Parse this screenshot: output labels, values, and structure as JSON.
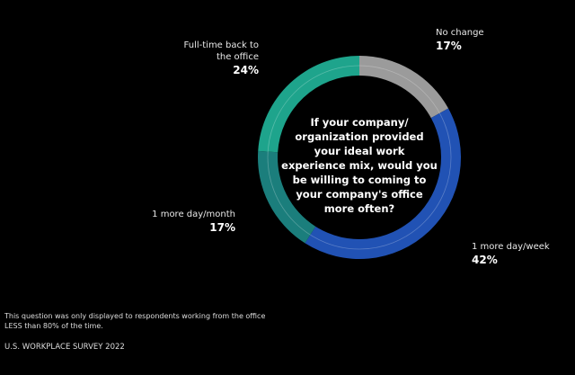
{
  "chart_data": {
    "type": "donut",
    "title": "If your company/ organization provided your ideal work experience mix, would you be willing to coming to your company's office more often?",
    "categories": [
      "No change",
      "1 more day/week",
      "1 more day/month",
      "Full-time back to the office"
    ],
    "values": [
      17,
      42,
      17,
      24
    ],
    "value_labels": [
      "17%",
      "42%",
      "17%",
      "24%"
    ],
    "colors": [
      "#9b9b9b",
      "#2152b4",
      "#1b7e7c",
      "#1ea48c"
    ],
    "footnote": "This question was only displayed to respondents working from the office LESS than 80% of the time.",
    "source": "U.S. WORKPLACE SURVEY 2022"
  }
}
